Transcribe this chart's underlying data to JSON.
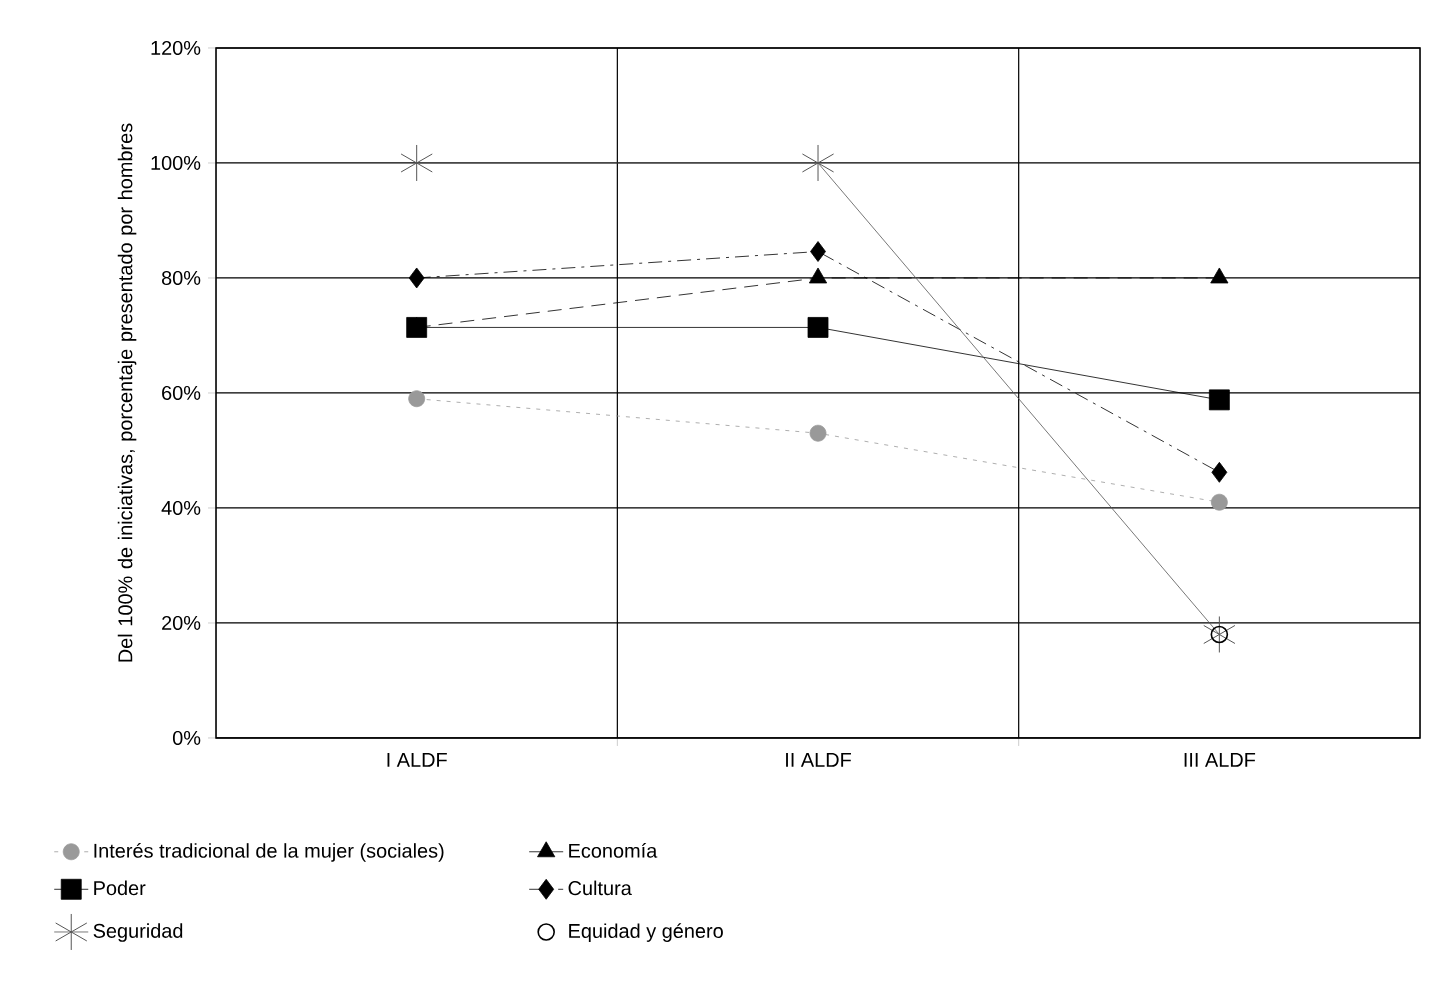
{
  "chart_data": {
    "type": "line",
    "ylabel": "Del 100% de iniciativas, porcentaje presentado por hombres",
    "categories": [
      "I ALDF",
      "II ALDF",
      "III ALDF"
    ],
    "ylim": [
      0,
      120
    ],
    "yticks": [
      {
        "value": 0,
        "label": "0%"
      },
      {
        "value": 20,
        "label": "20%"
      },
      {
        "value": 40,
        "label": "40%"
      },
      {
        "value": 60,
        "label": "60%"
      },
      {
        "value": 80,
        "label": "80%"
      },
      {
        "value": 100,
        "label": "100%"
      },
      {
        "value": 120,
        "label": "120%"
      }
    ],
    "grid": true,
    "legend": "bottom",
    "series": [
      {
        "name": "Interés tradicional de la mujer (sociales)",
        "color": "#999999",
        "marker": "circle",
        "line_style": "dotted",
        "values": [
          59,
          53,
          41
        ]
      },
      {
        "name": "Economía",
        "color": "#000000",
        "marker": "triangle",
        "line_style": "dashed",
        "values": [
          71.4,
          80,
          80
        ]
      },
      {
        "name": "Poder",
        "color": "#000000",
        "marker": "square",
        "line_style": "solid",
        "values": [
          71.4,
          71.4,
          58.8
        ]
      },
      {
        "name": "Cultura",
        "color": "#000000",
        "marker": "diamond",
        "line_style": "dashdot",
        "values": [
          80,
          84.6,
          46.2
        ]
      },
      {
        "name": "Seguridad",
        "color": "#555555",
        "marker": "cross",
        "line_style": "solid",
        "values": [
          100,
          100,
          18
        ]
      },
      {
        "name": "Equidad y género",
        "type": "scatter",
        "color": "#000000",
        "marker": "circle",
        "values": [
          null,
          null,
          18
        ]
      }
    ]
  }
}
